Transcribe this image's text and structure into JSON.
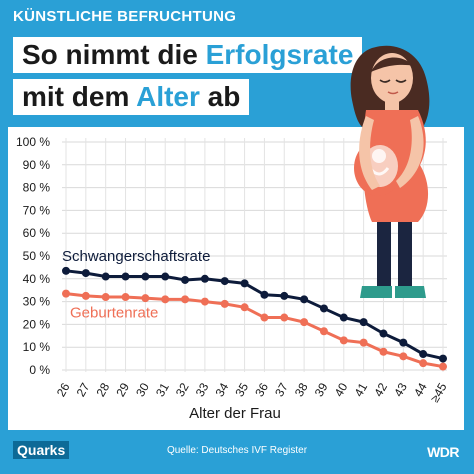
{
  "header": {
    "kicker": "KÜNSTLICHE BEFRUCHTUNG",
    "title_line1_pre": "So nimmt die ",
    "title_line1_hl": "Erfolgsrate",
    "title_line2_pre": "mit dem ",
    "title_line2_hl": "Alter",
    "title_line2_post": " ab"
  },
  "footer": {
    "brand": "Quarks",
    "source": "Quelle: Deutsches IVF Register",
    "logo": "WDR"
  },
  "colors": {
    "background": "#2aa0d6",
    "series_pregnancy": "#0d1b3a",
    "series_birth": "#ef6f56"
  },
  "illustration": {
    "icon": "pregnant-woman-illustration"
  },
  "chart_data": {
    "type": "line",
    "title": "",
    "xlabel": "Alter der Frau",
    "ylabel": "",
    "x": [
      "26",
      "27",
      "28",
      "29",
      "30",
      "31",
      "32",
      "33",
      "34",
      "35",
      "36",
      "37",
      "38",
      "39",
      "40",
      "41",
      "42",
      "43",
      "44",
      "≥45"
    ],
    "yticks": [
      "100 %",
      "90 %",
      "80 %",
      "70 %",
      "60 %",
      "50 %",
      "40 %",
      "30 %",
      "20 %",
      "10 %",
      "0 %"
    ],
    "ylim": [
      0,
      100
    ],
    "grid": true,
    "series": [
      {
        "name": "Schwangerschaftsrate",
        "values": [
          43.5,
          42.5,
          41,
          41,
          41,
          41,
          39.5,
          40,
          39,
          38,
          33,
          32.5,
          31,
          27,
          23,
          21,
          16,
          12,
          7,
          5
        ]
      },
      {
        "name": "Geburtenrate",
        "values": [
          33.5,
          32.5,
          32,
          32,
          31.5,
          31,
          31,
          30,
          29,
          27.5,
          23,
          23,
          21,
          17,
          13,
          12,
          8,
          6,
          3,
          1.5
        ]
      }
    ]
  }
}
